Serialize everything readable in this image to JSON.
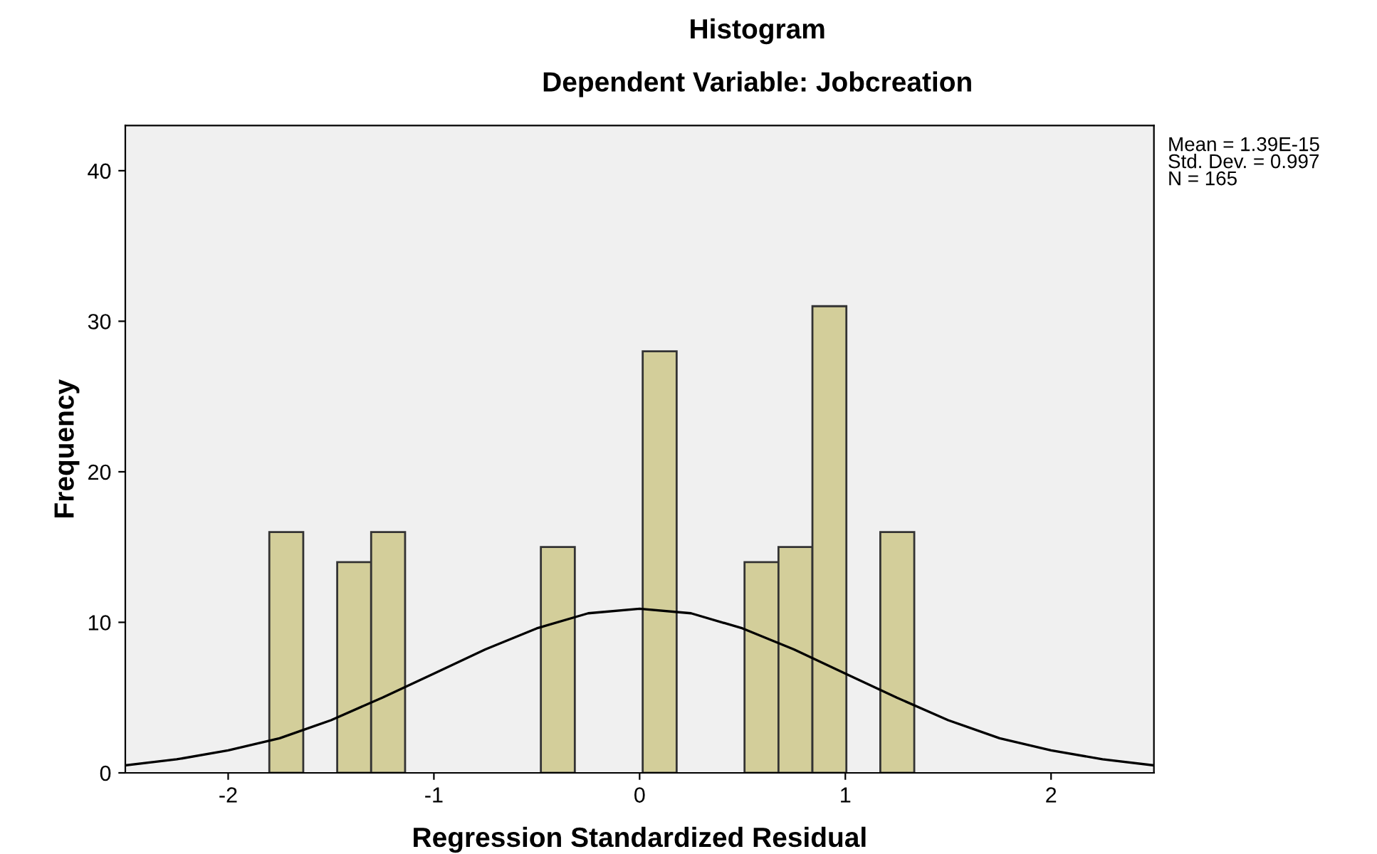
{
  "chart_data": {
    "type": "histogram",
    "title": "Histogram",
    "subtitle": "Dependent Variable: Jobcreation",
    "xlabel": "Regression Standardized Residual",
    "ylabel": "Frequency",
    "bins": [
      -1.8,
      -1.635,
      -1.47,
      -1.305,
      -1.14,
      -0.975,
      -0.81,
      -0.645,
      -0.48,
      -0.315,
      -0.15,
      0.015,
      0.18,
      0.345,
      0.51,
      0.675,
      0.84,
      1.005,
      1.17,
      1.335
    ],
    "values": [
      16,
      0,
      14,
      16,
      0,
      0,
      0,
      0,
      15,
      0,
      0,
      28,
      0,
      0,
      14,
      15,
      31,
      0,
      16
    ],
    "color": "#d3ce9a",
    "series": [
      {
        "type": "line",
        "color": "#000000",
        "x": [
          -2.5,
          -2.25,
          -2,
          -1.75,
          -1.5,
          -1.25,
          -1,
          -0.75,
          -0.5,
          -0.25,
          0,
          0.25,
          0.5,
          0.75,
          1,
          1.25,
          1.5,
          1.75,
          2,
          2.25,
          2.5
        ],
        "values": [
          0.5,
          0.9,
          1.5,
          2.3,
          3.5,
          5.0,
          6.6,
          8.2,
          9.6,
          10.6,
          10.9,
          10.6,
          9.6,
          8.2,
          6.6,
          5.0,
          3.5,
          2.3,
          1.5,
          0.9,
          0.5
        ]
      }
    ],
    "xlim": [
      -2.5,
      2.5
    ],
    "xticks": [
      -2,
      -1,
      0,
      1,
      2
    ],
    "ylim": [
      0,
      43
    ],
    "yticks": [
      0,
      10,
      20,
      30,
      40
    ],
    "grid": false,
    "annotations": [
      "Mean = 1.39E-15",
      "Std. Dev. = 0.997",
      "N = 165"
    ]
  }
}
